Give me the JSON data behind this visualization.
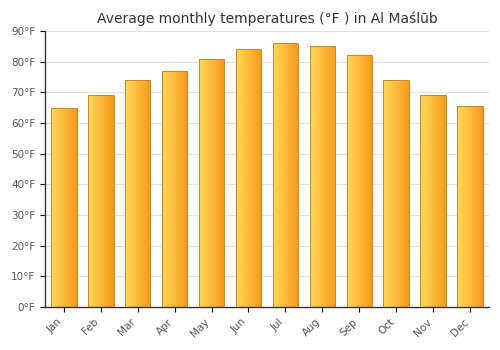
{
  "title": "Average monthly temperatures (°F ) in Al Maślūb",
  "months": [
    "Jan",
    "Feb",
    "Mar",
    "Apr",
    "May",
    "Jun",
    "Jul",
    "Aug",
    "Sep",
    "Oct",
    "Nov",
    "Dec"
  ],
  "values": [
    65,
    69,
    74,
    77,
    81,
    84,
    86,
    85,
    82,
    74,
    69,
    65.5
  ],
  "bar_color_left": "#FFD966",
  "bar_color_right": "#F5A623",
  "bar_edge_color": "#C8862A",
  "background_color": "#FFFFFF",
  "plot_bg_color": "#FFFFFF",
  "ylim": [
    0,
    90
  ],
  "yticks": [
    0,
    10,
    20,
    30,
    40,
    50,
    60,
    70,
    80,
    90
  ],
  "ytick_labels": [
    "0°F",
    "10°F",
    "20°F",
    "30°F",
    "40°F",
    "50°F",
    "60°F",
    "70°F",
    "80°F",
    "90°F"
  ],
  "title_fontsize": 10,
  "tick_fontsize": 7.5,
  "grid_color": "#DDDDDD",
  "spine_color": "#333333",
  "bar_width": 0.7
}
